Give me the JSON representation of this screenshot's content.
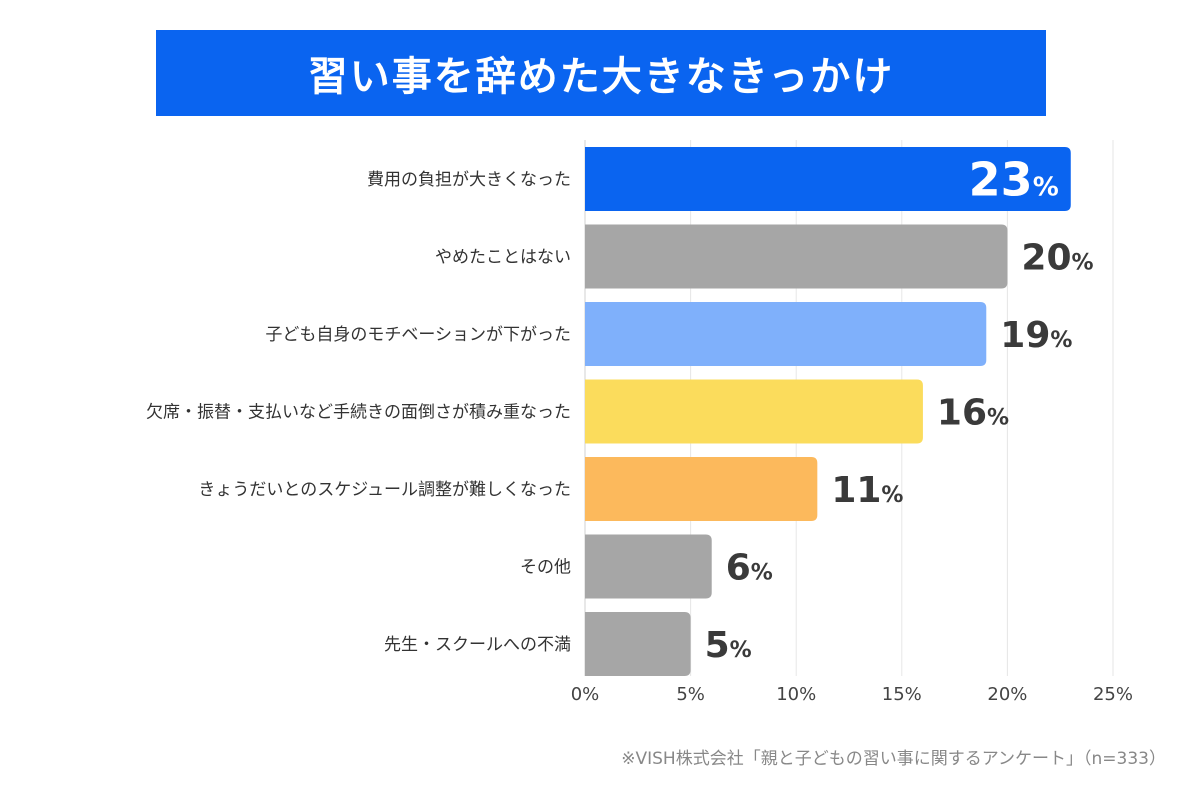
{
  "title": "習い事を辞めた大きなきっかけ",
  "footnote": "※VISH株式会社「親と子どもの習い事に関するアンケート」（n=333）",
  "chart_data": {
    "type": "bar",
    "orientation": "horizontal",
    "categories": [
      "費用の負担が大きくなった",
      "やめたことはない",
      "子ども自身のモチベーションが下がった",
      "欠席・振替・支払いなど手続きの面倒さが積み重なった",
      "きょうだいとのスケジュール調整が難しくなった",
      "その他",
      "先生・スクールへの不満"
    ],
    "values": [
      23,
      20,
      19,
      16,
      11,
      6,
      5
    ],
    "value_labels": [
      "23",
      "20",
      "19",
      "16",
      "11",
      "6",
      "5"
    ],
    "value_suffix": "%",
    "colors": [
      "#0a64f0",
      "#a6a6a6",
      "#7fb0fb",
      "#fbdc5c",
      "#fcb95c",
      "#a6a6a6",
      "#a6a6a6"
    ],
    "xlim": [
      0,
      25
    ],
    "x_ticks": [
      0,
      5,
      10,
      15,
      20,
      25
    ],
    "x_tick_labels": [
      "0%",
      "5%",
      "10%",
      "15%",
      "20%",
      "25%"
    ],
    "grid": true
  }
}
